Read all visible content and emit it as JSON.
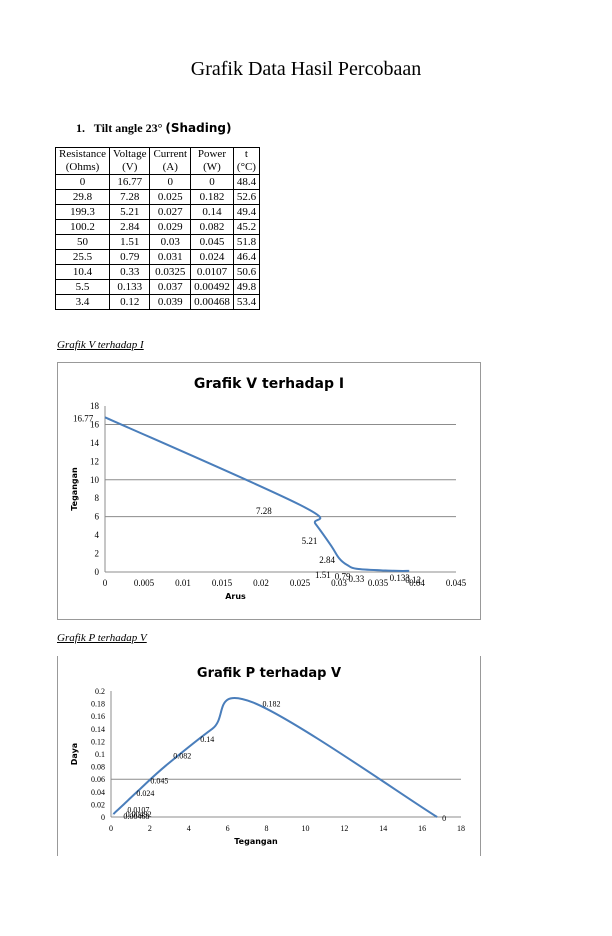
{
  "document": {
    "title": "Grafik Data Hasil Percobaan",
    "section": {
      "number": "1.",
      "label": "Tilt angle 23°",
      "tail": "(Shading)"
    },
    "table": {
      "headers": [
        [
          "Resistance",
          "(Ohms)"
        ],
        [
          "Voltage",
          "(V)"
        ],
        [
          "Current",
          "(A)"
        ],
        [
          "Power",
          "(W)"
        ],
        [
          "t",
          "(°C)"
        ]
      ],
      "rows": [
        [
          "0",
          "16.77",
          "0",
          "0",
          "48.4"
        ],
        [
          "29.8",
          "7.28",
          "0.025",
          "0.182",
          "52.6"
        ],
        [
          "199.3",
          "5.21",
          "0.027",
          "0.14",
          "49.4"
        ],
        [
          "100.2",
          "2.84",
          "0.029",
          "0.082",
          "45.2"
        ],
        [
          "50",
          "1.51",
          "0.03",
          "0.045",
          "51.8"
        ],
        [
          "25.5",
          "0.79",
          "0.031",
          "0.024",
          "46.4"
        ],
        [
          "10.4",
          "0.33",
          "0.0325",
          "0.0107",
          "50.6"
        ],
        [
          "5.5",
          "0.133",
          "0.037",
          "0.00492",
          "49.8"
        ],
        [
          "3.4",
          "0.12",
          "0.039",
          "0.00468",
          "53.4"
        ]
      ]
    },
    "caption_vi": "Grafik V terhadap I",
    "caption_pv": "Grafik P terhadap V"
  },
  "chart_data": [
    {
      "type": "line",
      "title": "Grafik V terhadap I",
      "xlabel": "Arus",
      "ylabel": "Tegangan",
      "xlim": [
        0,
        0.045
      ],
      "ylim": [
        0,
        18
      ],
      "x_ticks": [
        "0",
        "0.005",
        "0.01",
        "0.015",
        "0.02",
        "0.025",
        "0.03",
        "0.035",
        "0.04",
        "0.045"
      ],
      "y_ticks": [
        "0",
        "2",
        "4",
        "6",
        "8",
        "10",
        "12",
        "14",
        "16",
        "18"
      ],
      "gridlines_y": [
        6,
        10,
        16
      ],
      "line_color": "#4a7ebb",
      "series": [
        {
          "x": [
            0,
            0.025,
            0.027,
            0.029,
            0.03,
            0.031,
            0.0325,
            0.037,
            0.039
          ],
          "y": [
            16.77,
            7.28,
            5.21,
            2.84,
            1.51,
            0.79,
            0.33,
            0.133,
            0.12
          ],
          "data_labels": [
            "16.77",
            "7.28",
            "5.21",
            "2.84",
            "1.51",
            "0.79",
            "0.33",
            "0.133",
            "0.12"
          ]
        }
      ]
    },
    {
      "type": "line",
      "title": "Grafik P terhadap V",
      "xlabel": "Tegangan",
      "ylabel": "Daya",
      "xlim": [
        0,
        18
      ],
      "ylim": [
        0,
        0.2
      ],
      "x_ticks": [
        "0",
        "2",
        "4",
        "6",
        "8",
        "10",
        "12",
        "14",
        "16",
        "18"
      ],
      "y_ticks": [
        "0",
        "0.02",
        "0.04",
        "0.06",
        "0.08",
        "0.1",
        "0.12",
        "0.14",
        "0.16",
        "0.18",
        "0.2"
      ],
      "gridlines_y": [
        0.06
      ],
      "line_color": "#4a7ebb",
      "series": [
        {
          "x": [
            0.12,
            0.133,
            0.33,
            0.79,
            1.51,
            2.84,
            5.21,
            7.28,
            16.77
          ],
          "y": [
            0.00468,
            0.00492,
            0.0107,
            0.024,
            0.045,
            0.082,
            0.14,
            0.182,
            0
          ],
          "data_labels": [
            "0.00468",
            "0.00492",
            "0.0107",
            "0.024",
            "0.045",
            "0.082",
            "0.14",
            "0.182",
            "0"
          ]
        }
      ]
    }
  ]
}
